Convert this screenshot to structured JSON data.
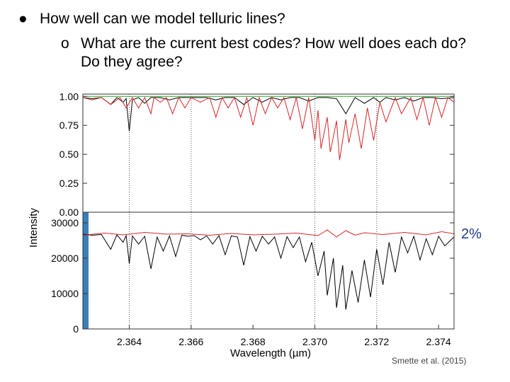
{
  "slide": {
    "bullet_1": "How well can we model telluric lines?",
    "bullet_1_marker": "●",
    "bullet_2": "What are the current best codes? How well does each do? Do they agree?",
    "bullet_2_marker": "o",
    "annotation": "2%",
    "citation": "Smette et al. (2015)"
  },
  "chart_data": [
    {
      "type": "line",
      "panel": "top",
      "xlim": [
        2.3625,
        2.3745
      ],
      "ylim": [
        0.0,
        1.02
      ],
      "yticks": [
        "1.00",
        "0.75",
        "0.50",
        "0.25",
        "0.00"
      ],
      "ytick_values": [
        1.0,
        0.75,
        0.5,
        0.25,
        0.0
      ],
      "vertical_dotted_lines_x": [
        2.364,
        2.366,
        2.37,
        2.372
      ],
      "series": [
        {
          "color": "#000000",
          "points": [
            [
              2.3625,
              0.99
            ],
            [
              2.3628,
              0.98
            ],
            [
              2.3631,
              0.99
            ],
            [
              2.3634,
              0.93
            ],
            [
              2.3636,
              0.99
            ],
            [
              2.3638,
              0.95
            ],
            [
              2.3639,
              0.98
            ],
            [
              2.364,
              0.7
            ],
            [
              2.3641,
              0.97
            ],
            [
              2.3643,
              0.99
            ],
            [
              2.3645,
              0.94
            ],
            [
              2.3647,
              0.99
            ],
            [
              2.365,
              0.99
            ],
            [
              2.3653,
              0.97
            ],
            [
              2.3656,
              0.99
            ],
            [
              2.3659,
              0.99
            ],
            [
              2.3662,
              0.99
            ],
            [
              2.3665,
              0.99
            ],
            [
              2.3668,
              0.97
            ],
            [
              2.3671,
              0.99
            ],
            [
              2.3674,
              0.99
            ],
            [
              2.3677,
              0.93
            ],
            [
              2.368,
              0.99
            ],
            [
              2.3683,
              0.95
            ],
            [
              2.3686,
              0.99
            ],
            [
              2.3689,
              0.97
            ],
            [
              2.3692,
              0.99
            ],
            [
              2.3695,
              0.99
            ],
            [
              2.3698,
              0.96
            ],
            [
              2.3701,
              0.99
            ],
            [
              2.3704,
              0.99
            ],
            [
              2.3707,
              0.98
            ],
            [
              2.371,
              0.85
            ],
            [
              2.3713,
              0.99
            ],
            [
              2.3716,
              0.94
            ],
            [
              2.3719,
              0.99
            ],
            [
              2.3721,
              0.95
            ],
            [
              2.3723,
              0.99
            ],
            [
              2.3726,
              0.97
            ],
            [
              2.3729,
              0.99
            ],
            [
              2.3732,
              0.96
            ],
            [
              2.3735,
              0.99
            ],
            [
              2.3738,
              0.99
            ],
            [
              2.3741,
              0.98
            ],
            [
              2.3745,
              0.99
            ]
          ]
        },
        {
          "color": "#d62728",
          "points": [
            [
              2.3625,
              0.99
            ],
            [
              2.3628,
              0.97
            ],
            [
              2.3631,
              0.99
            ],
            [
              2.3634,
              0.93
            ],
            [
              2.3637,
              0.99
            ],
            [
              2.3639,
              0.9
            ],
            [
              2.3641,
              0.99
            ],
            [
              2.3643,
              0.9
            ],
            [
              2.3645,
              0.99
            ],
            [
              2.3647,
              0.85
            ],
            [
              2.3648,
              0.99
            ],
            [
              2.365,
              0.95
            ],
            [
              2.3652,
              0.99
            ],
            [
              2.3654,
              0.85
            ],
            [
              2.3656,
              0.99
            ],
            [
              2.3658,
              0.9
            ],
            [
              2.366,
              0.99
            ],
            [
              2.3663,
              0.95
            ],
            [
              2.3666,
              0.99
            ],
            [
              2.3668,
              0.82
            ],
            [
              2.367,
              0.99
            ],
            [
              2.3672,
              0.9
            ],
            [
              2.3674,
              0.99
            ],
            [
              2.3676,
              0.82
            ],
            [
              2.3678,
              0.99
            ],
            [
              2.368,
              0.75
            ],
            [
              2.3682,
              0.99
            ],
            [
              2.3684,
              0.85
            ],
            [
              2.3686,
              0.99
            ],
            [
              2.3688,
              0.9
            ],
            [
              2.369,
              0.99
            ],
            [
              2.3692,
              0.8
            ],
            [
              2.3694,
              0.99
            ],
            [
              2.3696,
              0.72
            ],
            [
              2.3698,
              0.99
            ],
            [
              2.37,
              0.62
            ],
            [
              2.3701,
              0.88
            ],
            [
              2.3702,
              0.55
            ],
            [
              2.3704,
              0.82
            ],
            [
              2.3705,
              0.52
            ],
            [
              2.3707,
              0.79
            ],
            [
              2.3708,
              0.45
            ],
            [
              2.371,
              0.8
            ],
            [
              2.3711,
              0.6
            ],
            [
              2.3713,
              0.85
            ],
            [
              2.3715,
              0.55
            ],
            [
              2.3717,
              0.9
            ],
            [
              2.3719,
              0.62
            ],
            [
              2.3721,
              0.95
            ],
            [
              2.3723,
              0.78
            ],
            [
              2.3726,
              0.99
            ],
            [
              2.3728,
              0.85
            ],
            [
              2.3731,
              0.99
            ],
            [
              2.3733,
              0.8
            ],
            [
              2.3735,
              0.99
            ],
            [
              2.3737,
              0.75
            ],
            [
              2.3739,
              0.99
            ],
            [
              2.3741,
              0.82
            ],
            [
              2.3743,
              0.99
            ],
            [
              2.3745,
              0.95
            ]
          ]
        },
        {
          "color": "#2ca02c",
          "points": [
            [
              2.3625,
              1.0
            ],
            [
              2.3745,
              1.0
            ]
          ]
        }
      ]
    },
    {
      "type": "line",
      "panel": "bottom",
      "xlim": [
        2.3625,
        2.3745
      ],
      "ylim": [
        0,
        33000
      ],
      "yticks": [
        "30000",
        "20000",
        "10000",
        "0"
      ],
      "ytick_values": [
        30000,
        20000,
        10000,
        0
      ],
      "xticks": [
        "2.364",
        "2.366",
        "2.368",
        "2.370",
        "2.372",
        "2.374"
      ],
      "xtick_values": [
        2.364,
        2.366,
        2.368,
        2.37,
        2.372,
        2.374
      ],
      "xlabel": "Wavelength (µm)",
      "ylabel": "Intensity",
      "vertical_dotted_lines_x": [
        2.364,
        2.366,
        2.37,
        2.372
      ],
      "series": [
        {
          "color": "#000000",
          "points": [
            [
              2.3625,
              26800
            ],
            [
              2.3628,
              26500
            ],
            [
              2.3631,
              26700
            ],
            [
              2.3634,
              22500
            ],
            [
              2.3636,
              26600
            ],
            [
              2.3638,
              24500
            ],
            [
              2.3639,
              26400
            ],
            [
              2.364,
              18500
            ],
            [
              2.3641,
              26300
            ],
            [
              2.3643,
              24000
            ],
            [
              2.3645,
              26200
            ],
            [
              2.3647,
              17000
            ],
            [
              2.3649,
              26000
            ],
            [
              2.3651,
              22000
            ],
            [
              2.3653,
              26300
            ],
            [
              2.3655,
              20500
            ],
            [
              2.3657,
              26500
            ],
            [
              2.3659,
              26200
            ],
            [
              2.3661,
              26400
            ],
            [
              2.3663,
              25200
            ],
            [
              2.3665,
              26300
            ],
            [
              2.3667,
              24000
            ],
            [
              2.3669,
              26400
            ],
            [
              2.3671,
              21000
            ],
            [
              2.3673,
              26300
            ],
            [
              2.3675,
              26000
            ],
            [
              2.3677,
              18000
            ],
            [
              2.3679,
              26100
            ],
            [
              2.3681,
              22000
            ],
            [
              2.3683,
              26200
            ],
            [
              2.3685,
              24000
            ],
            [
              2.3687,
              26000
            ],
            [
              2.3689,
              20000
            ],
            [
              2.3691,
              26100
            ],
            [
              2.3693,
              23000
            ],
            [
              2.3695,
              26000
            ],
            [
              2.3697,
              19000
            ],
            [
              2.3699,
              24500
            ],
            [
              2.3701,
              15000
            ],
            [
              2.3703,
              22000
            ],
            [
              2.3704,
              9500
            ],
            [
              2.3706,
              20000
            ],
            [
              2.3707,
              6000
            ],
            [
              2.3709,
              18000
            ],
            [
              2.371,
              5500
            ],
            [
              2.3712,
              16500
            ],
            [
              2.3714,
              7500
            ],
            [
              2.3716,
              19500
            ],
            [
              2.3718,
              9000
            ],
            [
              2.372,
              22500
            ],
            [
              2.3722,
              12500
            ],
            [
              2.3724,
              24500
            ],
            [
              2.3726,
              16000
            ],
            [
              2.3728,
              26000
            ],
            [
              2.373,
              21500
            ],
            [
              2.3732,
              26200
            ],
            [
              2.3734,
              19500
            ],
            [
              2.3736,
              25500
            ],
            [
              2.3738,
              21000
            ],
            [
              2.374,
              26200
            ],
            [
              2.3742,
              23500
            ],
            [
              2.3745,
              26000
            ]
          ]
        },
        {
          "color": "#d62728",
          "points": [
            [
              2.3625,
              26500
            ],
            [
              2.3632,
              27100
            ],
            [
              2.3638,
              26600
            ],
            [
              2.3645,
              27300
            ],
            [
              2.3652,
              26800
            ],
            [
              2.3659,
              26900
            ],
            [
              2.3666,
              26500
            ],
            [
              2.3673,
              27000
            ],
            [
              2.368,
              26600
            ],
            [
              2.3687,
              26800
            ],
            [
              2.3694,
              27100
            ],
            [
              2.3701,
              26400
            ],
            [
              2.3704,
              28000
            ],
            [
              2.3707,
              26000
            ],
            [
              2.371,
              27800
            ],
            [
              2.3713,
              26500
            ],
            [
              2.3716,
              27200
            ],
            [
              2.3722,
              26700
            ],
            [
              2.3729,
              27300
            ],
            [
              2.3736,
              26600
            ],
            [
              2.3741,
              27500
            ],
            [
              2.3745,
              26900
            ]
          ]
        }
      ]
    }
  ]
}
